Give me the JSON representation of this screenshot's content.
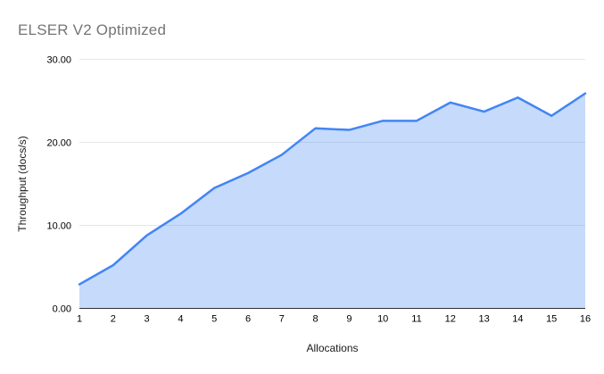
{
  "chart_data": {
    "type": "area",
    "title": "ELSER V2 Optimized",
    "xlabel": "Allocations",
    "ylabel": "Throughput (docs/s)",
    "x": [
      1,
      2,
      3,
      4,
      5,
      6,
      7,
      8,
      9,
      10,
      11,
      12,
      13,
      14,
      15,
      16
    ],
    "series": [
      {
        "name": "Throughput (docs/s)",
        "values": [
          2.9,
          5.2,
          8.8,
          11.4,
          14.5,
          16.3,
          18.5,
          21.7,
          21.5,
          22.6,
          22.6,
          24.8,
          23.7,
          25.4,
          23.2,
          25.9
        ]
      }
    ],
    "ylim": [
      0,
      30
    ],
    "ytick_step": 10,
    "ytick_labels": [
      "0.00",
      "10.00",
      "20.00",
      "30.00"
    ],
    "grid": true,
    "legend": "none",
    "colors": {
      "line": "#4285f4",
      "fill": "rgba(66,133,244,0.30)",
      "grid": "#e6e6e6",
      "axis": "#333333",
      "tick_label": "#000000",
      "title": "#757575",
      "axis_title": "#1a1a1a",
      "background": "#ffffff"
    }
  }
}
